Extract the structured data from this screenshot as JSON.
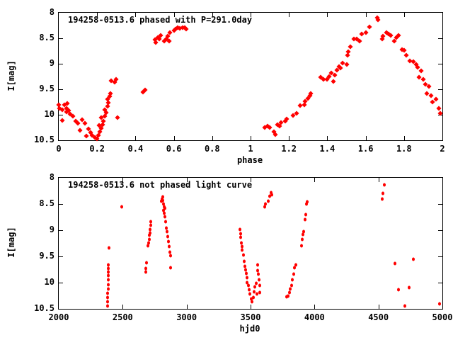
{
  "figure": {
    "background_color": "#ffffff",
    "axis_color": "#000000",
    "point_color": "#ff0000"
  },
  "chart_data": [
    {
      "type": "scatter",
      "title": "194258-0513.6 phased with P=291.0day",
      "xlabel": "phase",
      "ylabel": "I[mag]",
      "xlim": [
        0,
        2
      ],
      "ylim": [
        8,
        10.5
      ],
      "y_axis_direction": "inverted-magnitude-brighter-up",
      "grid": false,
      "legend": "none",
      "marker": "diamond",
      "marker_color": "#ff0000",
      "xticks": [
        0,
        0.2,
        0.4,
        0.6,
        0.8,
        1,
        1.2,
        1.4,
        1.6,
        1.8,
        2
      ],
      "xtick_labels": [
        "0",
        "0.2",
        "0.4",
        "0.6",
        "0.8",
        "1",
        "1.2",
        "1.4",
        "1.6",
        "1.8",
        "2"
      ],
      "yticks": [
        8,
        8.5,
        9,
        9.5,
        10,
        10.5
      ],
      "ytick_labels": [
        "8",
        "8.5",
        "9",
        "9.5",
        "10",
        "10.5"
      ],
      "points": [
        [
          0.0,
          9.8
        ],
        [
          0.005,
          9.87
        ],
        [
          0.02,
          9.9
        ],
        [
          0.02,
          10.11
        ],
        [
          0.03,
          9.8
        ],
        [
          0.04,
          9.87
        ],
        [
          0.04,
          9.94
        ],
        [
          0.045,
          9.78
        ],
        [
          0.05,
          9.92
        ],
        [
          0.06,
          9.99
        ],
        [
          0.075,
          10.03
        ],
        [
          0.09,
          10.13
        ],
        [
          0.1,
          10.17
        ],
        [
          0.11,
          10.31
        ],
        [
          0.12,
          10.1
        ],
        [
          0.135,
          10.17
        ],
        [
          0.145,
          10.42
        ],
        [
          0.155,
          10.28
        ],
        [
          0.165,
          10.35
        ],
        [
          0.175,
          10.4
        ],
        [
          0.19,
          10.44
        ],
        [
          0.2,
          10.47
        ],
        [
          0.205,
          10.4
        ],
        [
          0.21,
          10.21
        ],
        [
          0.215,
          10.33
        ],
        [
          0.22,
          10.26
        ],
        [
          0.222,
          10.05
        ],
        [
          0.23,
          10.19
        ],
        [
          0.233,
          10.12
        ],
        [
          0.24,
          10.03
        ],
        [
          0.24,
          9.9
        ],
        [
          0.248,
          9.96
        ],
        [
          0.253,
          9.83
        ],
        [
          0.253,
          9.69
        ],
        [
          0.26,
          9.76
        ],
        [
          0.266,
          9.64
        ],
        [
          0.27,
          9.59
        ],
        [
          0.273,
          9.33
        ],
        [
          0.29,
          9.36
        ],
        [
          0.3,
          9.3
        ],
        [
          0.305,
          10.05
        ],
        [
          0.44,
          9.55
        ],
        [
          0.45,
          9.52
        ],
        [
          0.5,
          8.53
        ],
        [
          0.505,
          8.58
        ],
        [
          0.515,
          8.49
        ],
        [
          0.525,
          8.51
        ],
        [
          0.53,
          8.44
        ],
        [
          0.55,
          8.56
        ],
        [
          0.56,
          8.51
        ],
        [
          0.57,
          8.46
        ],
        [
          0.575,
          8.56
        ],
        [
          0.58,
          8.39
        ],
        [
          0.6,
          8.35
        ],
        [
          0.61,
          8.32
        ],
        [
          0.62,
          8.29
        ],
        [
          0.63,
          8.31
        ],
        [
          0.645,
          8.29
        ],
        [
          0.655,
          8.29
        ],
        [
          0.665,
          8.32
        ],
        [
          1.075,
          10.25
        ],
        [
          1.09,
          10.22
        ],
        [
          1.1,
          10.25
        ],
        [
          1.12,
          10.33
        ],
        [
          1.13,
          10.39
        ],
        [
          1.14,
          10.19
        ],
        [
          1.15,
          10.22
        ],
        [
          1.16,
          10.15
        ],
        [
          1.18,
          10.12
        ],
        [
          1.19,
          10.08
        ],
        [
          1.22,
          10.01
        ],
        [
          1.24,
          9.97
        ],
        [
          1.26,
          9.82
        ],
        [
          1.28,
          9.8
        ],
        [
          1.285,
          9.73
        ],
        [
          1.3,
          9.68
        ],
        [
          1.31,
          9.63
        ],
        [
          1.315,
          9.59
        ],
        [
          1.365,
          9.26
        ],
        [
          1.38,
          9.3
        ],
        [
          1.4,
          9.31
        ],
        [
          1.41,
          9.25
        ],
        [
          1.42,
          9.18
        ],
        [
          1.43,
          9.35
        ],
        [
          1.44,
          9.22
        ],
        [
          1.45,
          9.12
        ],
        [
          1.46,
          9.05
        ],
        [
          1.47,
          9.08
        ],
        [
          1.48,
          8.98
        ],
        [
          1.5,
          9.02
        ],
        [
          1.505,
          8.84
        ],
        [
          1.51,
          8.77
        ],
        [
          1.52,
          8.67
        ],
        [
          1.54,
          8.52
        ],
        [
          1.555,
          8.52
        ],
        [
          1.57,
          8.56
        ],
        [
          1.58,
          8.42
        ],
        [
          1.6,
          8.39
        ],
        [
          1.62,
          8.28
        ],
        [
          1.66,
          8.1
        ],
        [
          1.665,
          8.14
        ],
        [
          1.685,
          8.52
        ],
        [
          1.69,
          8.46
        ],
        [
          1.71,
          8.39
        ],
        [
          1.72,
          8.41
        ],
        [
          1.73,
          8.44
        ],
        [
          1.75,
          8.56
        ],
        [
          1.76,
          8.49
        ],
        [
          1.77,
          8.44
        ],
        [
          1.79,
          8.72
        ],
        [
          1.8,
          8.73
        ],
        [
          1.81,
          8.84
        ],
        [
          1.83,
          8.94
        ],
        [
          1.85,
          8.96
        ],
        [
          1.865,
          9.01
        ],
        [
          1.87,
          9.07
        ],
        [
          1.88,
          9.26
        ],
        [
          1.89,
          9.14
        ],
        [
          1.9,
          9.31
        ],
        [
          1.91,
          9.4
        ],
        [
          1.92,
          9.59
        ],
        [
          1.93,
          9.45
        ],
        [
          1.94,
          9.63
        ],
        [
          1.95,
          9.75
        ],
        [
          1.965,
          9.7
        ],
        [
          1.98,
          9.87
        ],
        [
          1.99,
          9.97
        ]
      ]
    },
    {
      "type": "scatter",
      "title": "194258-0513.6 not phased light curve",
      "xlabel": "hjd0",
      "ylabel": "I[mag]",
      "xlim": [
        2000,
        5000
      ],
      "ylim": [
        8,
        10.5
      ],
      "y_axis_direction": "inverted-magnitude-brighter-up",
      "grid": false,
      "legend": "none",
      "marker": "dot",
      "marker_color": "#ff0000",
      "xticks": [
        2000,
        2500,
        3000,
        3500,
        4000,
        4500,
        5000
      ],
      "xtick_labels": [
        "2000",
        "2500",
        "3000",
        "3500",
        "4000",
        "4500",
        "5000"
      ],
      "yticks": [
        8,
        8.5,
        9,
        9.5,
        10,
        10.5
      ],
      "ytick_labels": [
        "8",
        "8.5",
        "9",
        "9.5",
        "10",
        "10.5"
      ],
      "points": [
        [
          2383,
          10.45
        ],
        [
          2383,
          10.36
        ],
        [
          2384,
          10.28
        ],
        [
          2384,
          10.2
        ],
        [
          2385,
          10.12
        ],
        [
          2385,
          10.04
        ],
        [
          2386,
          9.95
        ],
        [
          2386,
          9.87
        ],
        [
          2387,
          9.8
        ],
        [
          2387,
          9.73
        ],
        [
          2388,
          9.66
        ],
        [
          2393,
          9.34
        ],
        [
          2490,
          8.56
        ],
        [
          2680,
          9.8
        ],
        [
          2683,
          9.73
        ],
        [
          2686,
          9.62
        ],
        [
          2700,
          9.3
        ],
        [
          2703,
          9.24
        ],
        [
          2708,
          9.17
        ],
        [
          2710,
          9.1
        ],
        [
          2713,
          9.05
        ],
        [
          2716,
          8.98
        ],
        [
          2718,
          8.91
        ],
        [
          2721,
          8.84
        ],
        [
          2802,
          8.45
        ],
        [
          2807,
          8.4
        ],
        [
          2812,
          8.37
        ],
        [
          2816,
          8.43
        ],
        [
          2820,
          8.5
        ],
        [
          2820,
          8.62
        ],
        [
          2824,
          8.55
        ],
        [
          2826,
          8.67
        ],
        [
          2828,
          8.58
        ],
        [
          2833,
          8.74
        ],
        [
          2838,
          8.84
        ],
        [
          2843,
          8.96
        ],
        [
          2848,
          9.03
        ],
        [
          2853,
          9.12
        ],
        [
          2858,
          9.21
        ],
        [
          2862,
          9.31
        ],
        [
          2867,
          9.42
        ],
        [
          2874,
          9.49
        ],
        [
          2876,
          9.72
        ],
        [
          3417,
          8.98
        ],
        [
          3420,
          9.07
        ],
        [
          3423,
          9.14
        ],
        [
          3430,
          9.24
        ],
        [
          3432,
          9.31
        ],
        [
          3434,
          9.38
        ],
        [
          3443,
          9.47
        ],
        [
          3450,
          9.59
        ],
        [
          3455,
          9.69
        ],
        [
          3460,
          9.76
        ],
        [
          3468,
          9.83
        ],
        [
          3472,
          9.9
        ],
        [
          3475,
          10.0
        ],
        [
          3482,
          10.06
        ],
        [
          3490,
          10.14
        ],
        [
          3497,
          10.22
        ],
        [
          3505,
          10.31
        ],
        [
          3512,
          10.36
        ],
        [
          3520,
          10.28
        ],
        [
          3528,
          10.17
        ],
        [
          3535,
          10.08
        ],
        [
          3545,
          10.02
        ],
        [
          3552,
          10.21
        ],
        [
          3555,
          9.66
        ],
        [
          3558,
          9.77
        ],
        [
          3562,
          9.84
        ],
        [
          3566,
          9.95
        ],
        [
          3570,
          10.06
        ],
        [
          3574,
          10.19
        ],
        [
          3612,
          8.55
        ],
        [
          3618,
          8.5
        ],
        [
          3640,
          8.44
        ],
        [
          3652,
          8.35
        ],
        [
          3660,
          8.28
        ],
        [
          3665,
          8.33
        ],
        [
          3785,
          10.27
        ],
        [
          3795,
          10.25
        ],
        [
          3803,
          10.19
        ],
        [
          3812,
          10.12
        ],
        [
          3820,
          10.05
        ],
        [
          3828,
          9.95
        ],
        [
          3836,
          9.84
        ],
        [
          3845,
          9.72
        ],
        [
          3852,
          9.66
        ],
        [
          3898,
          9.3
        ],
        [
          3903,
          9.17
        ],
        [
          3908,
          9.08
        ],
        [
          3914,
          9.03
        ],
        [
          3925,
          8.8
        ],
        [
          3933,
          8.7
        ],
        [
          3938,
          8.5
        ],
        [
          3942,
          8.46
        ],
        [
          4529,
          8.4
        ],
        [
          4534,
          8.3
        ],
        [
          4548,
          8.13
        ],
        [
          4628,
          9.64
        ],
        [
          4656,
          10.13
        ],
        [
          4706,
          10.44
        ],
        [
          4739,
          10.09
        ],
        [
          4772,
          9.56
        ],
        [
          4977,
          10.4
        ]
      ]
    }
  ]
}
